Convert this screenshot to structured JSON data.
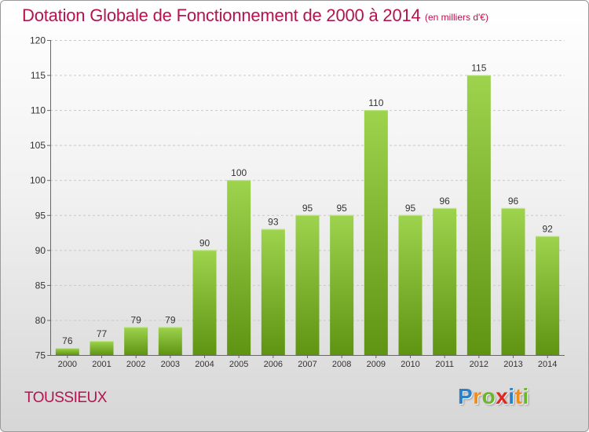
{
  "title": "Dotation Globale de Fonctionnement de 2000 à 2014",
  "unit": "(en milliers d'€)",
  "commune": "TOUSSIEUX",
  "brand": {
    "letters": [
      "P",
      "r",
      "o",
      "x",
      "i",
      "t",
      "i"
    ],
    "colors": [
      "#2b7fcb",
      "#f08c1b",
      "#6cb42c",
      "#e0261f",
      "#2b7fcb",
      "#f08c1b",
      "#6cb42c"
    ]
  },
  "colors": {
    "bar_top": "#9dd34d",
    "bar_bottom": "#5e9412",
    "title": "#b5134f"
  },
  "chart_data": {
    "type": "bar",
    "categories": [
      "2000",
      "2001",
      "2002",
      "2003",
      "2004",
      "2005",
      "2006",
      "2007",
      "2008",
      "2009",
      "2010",
      "2011",
      "2012",
      "2013",
      "2014"
    ],
    "values": [
      76,
      77,
      79,
      79,
      90,
      100,
      93,
      95,
      95,
      110,
      95,
      96,
      115,
      96,
      92
    ],
    "ylim": [
      75,
      120
    ],
    "yticks": [
      75,
      80,
      85,
      90,
      95,
      100,
      105,
      110,
      115,
      120
    ],
    "grid": true,
    "title": "Dotation Globale de Fonctionnement de 2000 à 2014",
    "xlabel": "",
    "ylabel": ""
  }
}
